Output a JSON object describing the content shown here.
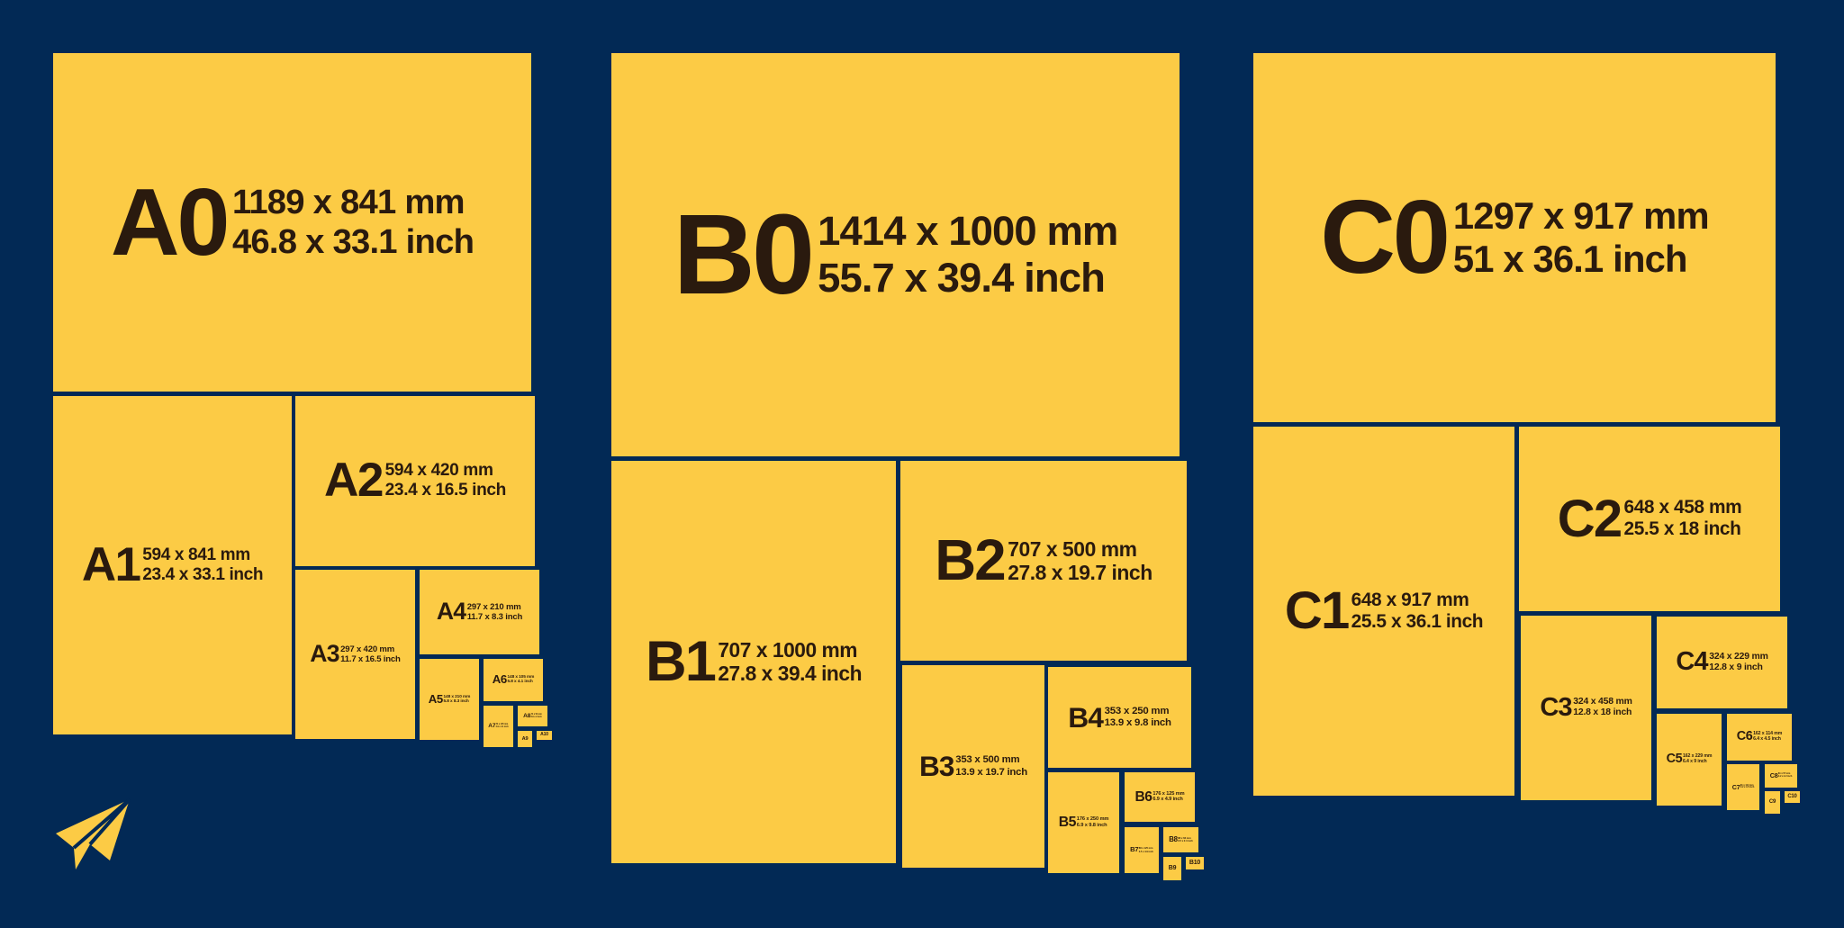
{
  "colors": {
    "background": "#022955",
    "sheet": "#FCCB45",
    "text": "#2a1a0e"
  },
  "logo_icon": "paper-plane-icon",
  "groups": [
    {
      "series": "A",
      "sheets": [
        {
          "name": "A0",
          "mm": "1189 x 841 mm",
          "inch": "46.8 x 33.1 inch"
        },
        {
          "name": "A1",
          "mm": "594 x 841 mm",
          "inch": "23.4 x 33.1 inch"
        },
        {
          "name": "A2",
          "mm": "594 x 420 mm",
          "inch": "23.4 x 16.5 inch"
        },
        {
          "name": "A3",
          "mm": "297 x 420 mm",
          "inch": "11.7 x 16.5 inch"
        },
        {
          "name": "A4",
          "mm": "297 x 210 mm",
          "inch": "11.7 x 8.3 inch"
        },
        {
          "name": "A5",
          "mm": "148 x 210 mm",
          "inch": "5.8 x 8.3 inch"
        },
        {
          "name": "A6",
          "mm": "148 x 105 mm",
          "inch": "5.8 x 4.1 inch"
        },
        {
          "name": "A7",
          "mm": "74 x 105 mm",
          "inch": "2.9 x 4.1 inch"
        },
        {
          "name": "A8",
          "mm": "74 x 52 mm",
          "inch": "2.9 x 2 inch"
        },
        {
          "name": "A9",
          "mm": "",
          "inch": ""
        },
        {
          "name": "A10",
          "mm": "",
          "inch": ""
        }
      ]
    },
    {
      "series": "B",
      "sheets": [
        {
          "name": "B0",
          "mm": "1414 x 1000 mm",
          "inch": "55.7 x 39.4 inch"
        },
        {
          "name": "B1",
          "mm": "707 x 1000 mm",
          "inch": "27.8 x 39.4 inch"
        },
        {
          "name": "B2",
          "mm": "707 x 500 mm",
          "inch": "27.8 x 19.7 inch"
        },
        {
          "name": "B3",
          "mm": "353 x 500 mm",
          "inch": "13.9 x 19.7 inch"
        },
        {
          "name": "B4",
          "mm": "353 x 250 mm",
          "inch": "13.9 x 9.8 inch"
        },
        {
          "name": "B5",
          "mm": "176 x 250 mm",
          "inch": "6.9 x 9.8 inch"
        },
        {
          "name": "B6",
          "mm": "176 x 125 mm",
          "inch": "6.9 x 4.9 inch"
        },
        {
          "name": "B7",
          "mm": "88 x 125 mm",
          "inch": "3.5 x 4.9 inch"
        },
        {
          "name": "B8",
          "mm": "88 x 62 mm",
          "inch": "3.5 x 2.4 inch"
        },
        {
          "name": "B9",
          "mm": "",
          "inch": ""
        },
        {
          "name": "B10",
          "mm": "",
          "inch": ""
        }
      ]
    },
    {
      "series": "C",
      "sheets": [
        {
          "name": "C0",
          "mm": "1297 x 917 mm",
          "inch": "51 x 36.1 inch"
        },
        {
          "name": "C1",
          "mm": "648 x 917 mm",
          "inch": "25.5 x 36.1 inch"
        },
        {
          "name": "C2",
          "mm": "648 x 458 mm",
          "inch": "25.5 x 18 inch"
        },
        {
          "name": "C3",
          "mm": "324 x 458 mm",
          "inch": "12.8 x 18 inch"
        },
        {
          "name": "C4",
          "mm": "324 x 229 mm",
          "inch": "12.8 x 9 inch"
        },
        {
          "name": "C5",
          "mm": "162 x 229 mm",
          "inch": "6.4 x 9 inch"
        },
        {
          "name": "C6",
          "mm": "162 x 114 mm",
          "inch": "6.4 x 4.5 inch"
        },
        {
          "name": "C7",
          "mm": "81 x 114 mm",
          "inch": "3.2 x 4.5 inch"
        },
        {
          "name": "C8",
          "mm": "81 x 57 mm",
          "inch": "3.2 x 2.2 inch"
        },
        {
          "name": "C9",
          "mm": "",
          "inch": ""
        },
        {
          "name": "C10",
          "mm": "",
          "inch": ""
        }
      ]
    }
  ]
}
